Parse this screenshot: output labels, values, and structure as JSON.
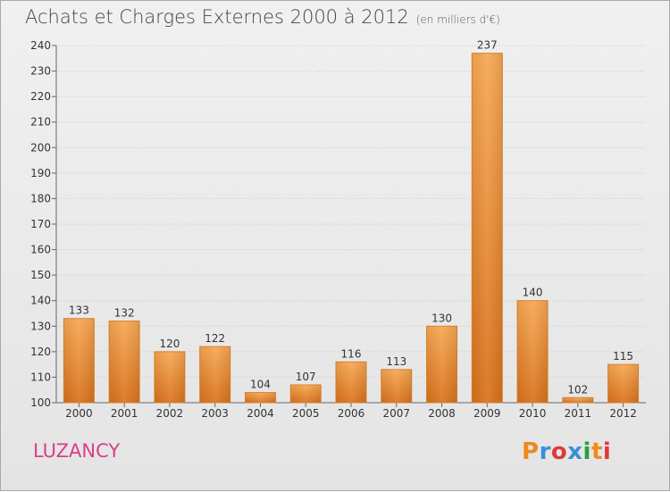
{
  "header": {
    "title": "Achats et Charges Externes 2000 à 2012",
    "unit": "(en milliers d'€)"
  },
  "footer": {
    "commune": "LUZANCY",
    "logo_text": "Proxiti"
  },
  "colors": {
    "bar_top": "#f7a752",
    "bar_bottom": "#d9721b",
    "commune": "#d93f8a",
    "logo": [
      "#f08a1c",
      "#3a8fd6",
      "#e03a3a",
      "#3a8fd6",
      "#2e9e3e",
      "#f08a1c",
      "#e03a3a"
    ]
  },
  "chart_data": {
    "type": "bar",
    "categories": [
      "2000",
      "2001",
      "2002",
      "2003",
      "2004",
      "2005",
      "2006",
      "2007",
      "2008",
      "2009",
      "2010",
      "2011",
      "2012"
    ],
    "values": [
      133,
      132,
      120,
      122,
      104,
      107,
      116,
      113,
      130,
      237,
      140,
      102,
      115
    ],
    "title": "Achats et Charges Externes 2000 à 2012",
    "ylim": [
      100,
      240
    ],
    "yticks": [
      100,
      110,
      120,
      130,
      140,
      150,
      160,
      170,
      180,
      190,
      200,
      210,
      220,
      230,
      240
    ],
    "grid": true
  }
}
